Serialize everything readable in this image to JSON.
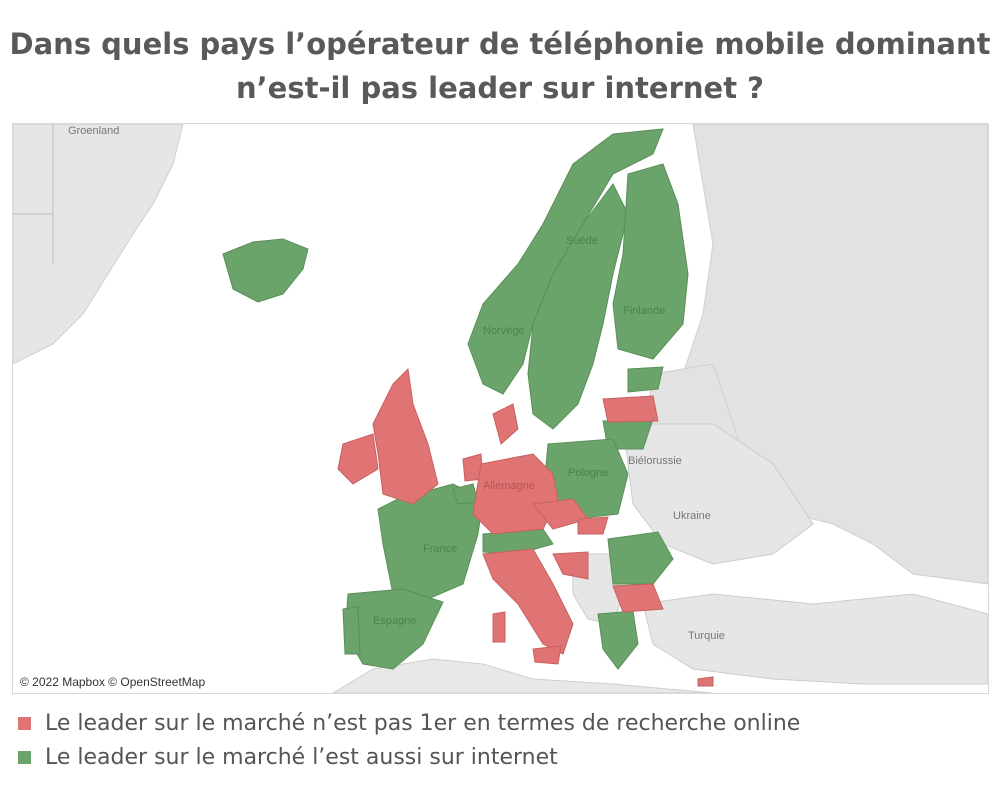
{
  "title_line1": "Dans quels pays l’opérateur de téléphonie mobile dominant",
  "title_line2": "n’est-il pas leader sur internet ?",
  "colors": {
    "not_leader": "#e07474",
    "also_leader": "#6aa46a",
    "land": "#e4e4e4",
    "sea": "#ffffff",
    "border": "#c8c8c8"
  },
  "map": {
    "labels": {
      "greenland": "Groenland",
      "sweden": "Suède",
      "norway": "Norvège",
      "finland": "Finlande",
      "poland": "Pologne",
      "belarus": "Biélorussie",
      "ukraine": "Ukraine",
      "germany": "Allemagne",
      "france": "France",
      "spain": "Espagne",
      "turkey": "Turquie"
    },
    "attribution": "© 2022 Mapbox © OpenStreetMap"
  },
  "legend": [
    {
      "label": "Le leader sur le marché n’est pas 1er en termes de recherche online",
      "color": "#e07474"
    },
    {
      "label": "Le leader sur le marché l’est aussi sur internet",
      "color": "#6aa46a"
    }
  ]
}
